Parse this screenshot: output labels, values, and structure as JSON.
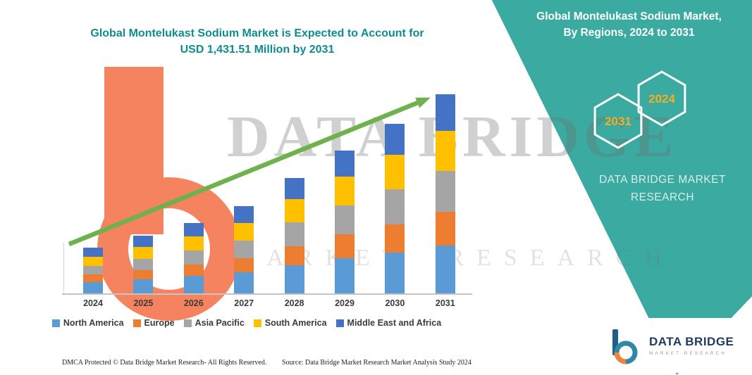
{
  "theme": {
    "teal": "#3BAAA0",
    "title_teal": "#0F8C8E",
    "gold": "#F2B01E",
    "green": "#6FB14C",
    "orange": "#F4764E",
    "navy": "#1E3A5F"
  },
  "header": {
    "title_line1": "Global Montelukast Sodium Market is Expected to Account for",
    "title_line2": "USD 1,431.51 Million by 2031"
  },
  "panel": {
    "heading_line1": "Global Montelukast Sodium Market,",
    "heading_line2": "By Regions, 2024 to 2031",
    "hex_back_label": "2031",
    "hex_front_label": "2024",
    "brand_line1": "DATA BRIDGE MARKET",
    "brand_line2": "RESEARCH"
  },
  "watermark": {
    "line1": "DATA BRIDGE",
    "line2": "MARKET RESEARCH"
  },
  "chart_data": {
    "type": "bar",
    "stacked": true,
    "title": "Global Montelukast Sodium Market is Expected to Account for USD 1,431.51 Million by 2031",
    "unit": "USD Million",
    "value_axis_visible": false,
    "values_estimated": true,
    "legend_position": "bottom",
    "trend_arrow": true,
    "ylim": [
      0,
      1500
    ],
    "categories": [
      "2024",
      "2025",
      "2026",
      "2027",
      "2028",
      "2029",
      "2030",
      "2031"
    ],
    "series": [
      {
        "name": "North America",
        "color": "#5B9BD5",
        "values": [
          81,
          102,
          127,
          152,
          203,
          254,
          294,
          345
        ]
      },
      {
        "name": "Europe",
        "color": "#ED7D31",
        "values": [
          56,
          66,
          81,
          102,
          137,
          168,
          203,
          239
        ]
      },
      {
        "name": "Asia Pacific",
        "color": "#A5A5A5",
        "values": [
          61,
          81,
          102,
          127,
          168,
          208,
          249,
          294
        ]
      },
      {
        "name": "South America",
        "color": "#FFC000",
        "values": [
          66,
          86,
          102,
          127,
          168,
          208,
          249,
          289
        ]
      },
      {
        "name": "Middle East and Africa",
        "color": "#4472C4",
        "values": [
          66,
          81,
          96,
          117,
          152,
          188,
          223,
          264.51
        ]
      }
    ],
    "totals": [
      330,
      416,
      508,
      625,
      828,
      1026,
      1218,
      1431.51
    ]
  },
  "footer": {
    "copyright": "DMCA Protected © Data Bridge Market Research-  All Rights Reserved.",
    "source": "Source: Data Bridge Market Research  Market Analysis Study 2024"
  },
  "logo": {
    "name": "DATA BRIDGE",
    "subtitle": "MARKET RESEARCH"
  }
}
